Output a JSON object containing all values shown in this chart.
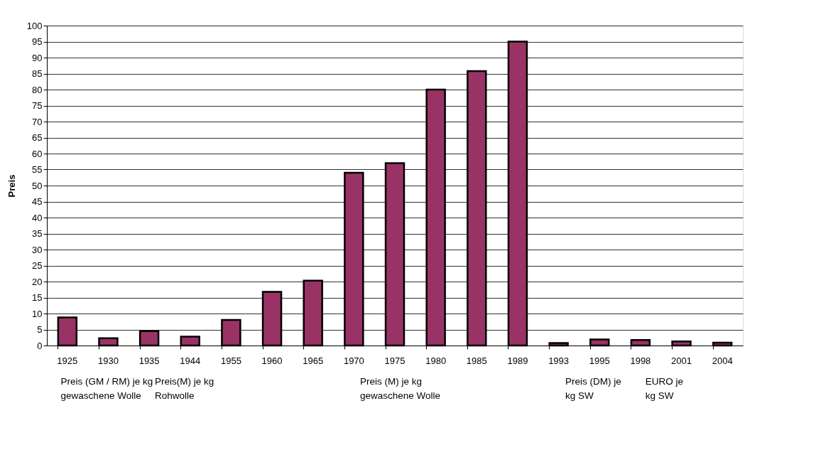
{
  "chart_data": {
    "type": "bar",
    "ylabel": "Preis",
    "categories": [
      "1925",
      "1930",
      "1935",
      "1944",
      "1955",
      "1960",
      "1965",
      "1970",
      "1975",
      "1980",
      "1985",
      "1989",
      "1993",
      "1995",
      "1998",
      "2001",
      "2004"
    ],
    "values": [
      8.8,
      2.3,
      4.5,
      2.8,
      8,
      16.8,
      20.3,
      54,
      57,
      80,
      85.8,
      95,
      0.8,
      1.9,
      1.7,
      1.3,
      0.9
    ],
    "color": "#993366",
    "ylim": [
      0,
      100
    ],
    "yticks": [
      0,
      5,
      10,
      15,
      20,
      25,
      30,
      35,
      40,
      45,
      50,
      55,
      60,
      65,
      70,
      75,
      80,
      85,
      90,
      95,
      100
    ],
    "grid": "y",
    "annotations": [
      "Preis (GM / RM) je kg\ngewaschene Wolle",
      "Preis(M) je kg\nRohwolle",
      "Preis (M) je kg\ngewaschene Wolle",
      "Preis (DM) je\nkg SW",
      "EURO je\nkg SW"
    ]
  }
}
